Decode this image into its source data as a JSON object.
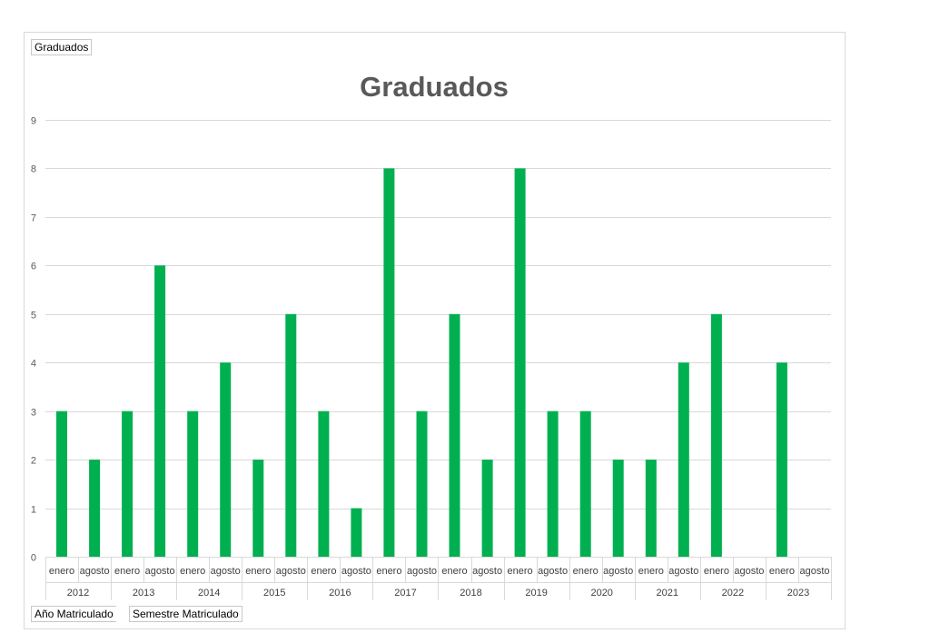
{
  "pivot": {
    "filter_field": "Graduados",
    "row_fields": [
      "Año Matriculado",
      "Semestre Matriculado"
    ]
  },
  "colors": {
    "bar": "#00b050",
    "grid": "#d9d9d9",
    "axis_text": "#595959"
  },
  "chart_data": {
    "type": "bar",
    "title": "Graduados",
    "xlabel": "",
    "ylabel": "",
    "ylim": [
      0,
      9
    ],
    "yticks": [
      0,
      1,
      2,
      3,
      4,
      5,
      6,
      7,
      8,
      9
    ],
    "grid": true,
    "legend": "none",
    "groups": [
      {
        "year": "2012",
        "categories": [
          "enero",
          "agosto"
        ],
        "values": [
          3,
          2
        ]
      },
      {
        "year": "2013",
        "categories": [
          "enero",
          "agosto"
        ],
        "values": [
          3,
          6
        ]
      },
      {
        "year": "2014",
        "categories": [
          "enero",
          "agosto"
        ],
        "values": [
          3,
          4
        ]
      },
      {
        "year": "2015",
        "categories": [
          "enero",
          "agosto"
        ],
        "values": [
          2,
          5
        ]
      },
      {
        "year": "2016",
        "categories": [
          "enero",
          "agosto"
        ],
        "values": [
          3,
          1
        ]
      },
      {
        "year": "2017",
        "categories": [
          "enero",
          "agosto"
        ],
        "values": [
          8,
          3
        ]
      },
      {
        "year": "2018",
        "categories": [
          "enero",
          "agosto"
        ],
        "values": [
          5,
          2
        ]
      },
      {
        "year": "2019",
        "categories": [
          "enero",
          "agosto"
        ],
        "values": [
          8,
          3
        ]
      },
      {
        "year": "2020",
        "categories": [
          "enero",
          "agosto"
        ],
        "values": [
          3,
          2
        ]
      },
      {
        "year": "2021",
        "categories": [
          "enero",
          "agosto"
        ],
        "values": [
          2,
          4
        ]
      },
      {
        "year": "2022",
        "categories": [
          "enero",
          "agosto"
        ],
        "values": [
          5,
          null
        ]
      },
      {
        "year": "2023",
        "categories": [
          "enero",
          "agosto"
        ],
        "values": [
          4,
          null
        ]
      }
    ]
  }
}
